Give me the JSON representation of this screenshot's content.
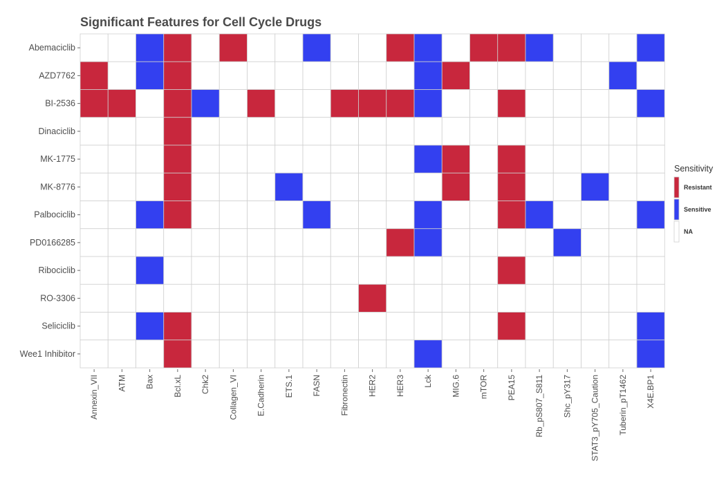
{
  "chart_data": {
    "type": "heatmap",
    "title": "Significant Features for Cell Cycle Drugs",
    "xlabel": "",
    "ylabel": "",
    "rows": [
      "Abemaciclib",
      "AZD7762",
      "BI-2536",
      "Dinaciclib",
      "MK-1775",
      "MK-8776",
      "Palbociclib",
      "PD0166285",
      "Ribociclib",
      "RO-3306",
      "Seliciclib",
      "Wee1 Inhibitor"
    ],
    "columns": [
      "Annexin_VII",
      "ATM",
      "Bax",
      "Bcl.xL",
      "Chk2",
      "Collagen_VI",
      "E.Cadherin",
      "ETS.1",
      "FASN",
      "Fibronectin",
      "HER2",
      "HER3",
      "Lck",
      "MIG.6",
      "mTOR",
      "PEA15",
      "Rb_pS807_S811",
      "Shc_pY317",
      "STAT3_pY705_Caution",
      "Tuberin_pT1462",
      "X4E.BP1"
    ],
    "values": [
      [
        "NA",
        "NA",
        "Sensitive",
        "Resistant",
        "NA",
        "Resistant",
        "NA",
        "NA",
        "Sensitive",
        "NA",
        "NA",
        "Resistant",
        "Sensitive",
        "NA",
        "Resistant",
        "Resistant",
        "Sensitive",
        "NA",
        "NA",
        "NA",
        "Sensitive"
      ],
      [
        "Resistant",
        "NA",
        "Sensitive",
        "Resistant",
        "NA",
        "NA",
        "NA",
        "NA",
        "NA",
        "NA",
        "NA",
        "NA",
        "Sensitive",
        "Resistant",
        "NA",
        "NA",
        "NA",
        "NA",
        "NA",
        "Sensitive",
        "NA"
      ],
      [
        "Resistant",
        "Resistant",
        "NA",
        "Resistant",
        "Sensitive",
        "NA",
        "Resistant",
        "NA",
        "NA",
        "Resistant",
        "Resistant",
        "Resistant",
        "Sensitive",
        "NA",
        "NA",
        "Resistant",
        "NA",
        "NA",
        "NA",
        "NA",
        "Sensitive"
      ],
      [
        "NA",
        "NA",
        "NA",
        "Resistant",
        "NA",
        "NA",
        "NA",
        "NA",
        "NA",
        "NA",
        "NA",
        "NA",
        "NA",
        "NA",
        "NA",
        "NA",
        "NA",
        "NA",
        "NA",
        "NA",
        "NA"
      ],
      [
        "NA",
        "NA",
        "NA",
        "Resistant",
        "NA",
        "NA",
        "NA",
        "NA",
        "NA",
        "NA",
        "NA",
        "NA",
        "Sensitive",
        "Resistant",
        "NA",
        "Resistant",
        "NA",
        "NA",
        "NA",
        "NA",
        "NA"
      ],
      [
        "NA",
        "NA",
        "NA",
        "Resistant",
        "NA",
        "NA",
        "NA",
        "Sensitive",
        "NA",
        "NA",
        "NA",
        "NA",
        "NA",
        "Resistant",
        "NA",
        "Resistant",
        "NA",
        "NA",
        "Sensitive",
        "NA",
        "NA"
      ],
      [
        "NA",
        "NA",
        "Sensitive",
        "Resistant",
        "NA",
        "NA",
        "NA",
        "NA",
        "Sensitive",
        "NA",
        "NA",
        "NA",
        "Sensitive",
        "NA",
        "NA",
        "Resistant",
        "Sensitive",
        "NA",
        "NA",
        "NA",
        "Sensitive"
      ],
      [
        "NA",
        "NA",
        "NA",
        "NA",
        "NA",
        "NA",
        "NA",
        "NA",
        "NA",
        "NA",
        "NA",
        "Resistant",
        "Sensitive",
        "NA",
        "NA",
        "NA",
        "NA",
        "Sensitive",
        "NA",
        "NA",
        "NA"
      ],
      [
        "NA",
        "NA",
        "Sensitive",
        "NA",
        "NA",
        "NA",
        "NA",
        "NA",
        "NA",
        "NA",
        "NA",
        "NA",
        "NA",
        "NA",
        "NA",
        "Resistant",
        "NA",
        "NA",
        "NA",
        "NA",
        "NA"
      ],
      [
        "NA",
        "NA",
        "NA",
        "NA",
        "NA",
        "NA",
        "NA",
        "NA",
        "NA",
        "NA",
        "Resistant",
        "NA",
        "NA",
        "NA",
        "NA",
        "NA",
        "NA",
        "NA",
        "NA",
        "NA",
        "NA"
      ],
      [
        "NA",
        "NA",
        "Sensitive",
        "Resistant",
        "NA",
        "NA",
        "NA",
        "NA",
        "NA",
        "NA",
        "NA",
        "NA",
        "NA",
        "NA",
        "NA",
        "Resistant",
        "NA",
        "NA",
        "NA",
        "NA",
        "Sensitive"
      ],
      [
        "NA",
        "NA",
        "NA",
        "Resistant",
        "NA",
        "NA",
        "NA",
        "NA",
        "NA",
        "NA",
        "NA",
        "NA",
        "Sensitive",
        "NA",
        "NA",
        "NA",
        "NA",
        "NA",
        "NA",
        "NA",
        "Sensitive"
      ]
    ],
    "legend": {
      "title": "Sensitivity",
      "placement": "right",
      "entries": [
        {
          "label": "Resistant",
          "color": "#c8273d"
        },
        {
          "label": "Sensitive",
          "color": "#3340f0"
        },
        {
          "label": "NA",
          "color": "#ffffff"
        }
      ]
    },
    "grid": true
  }
}
